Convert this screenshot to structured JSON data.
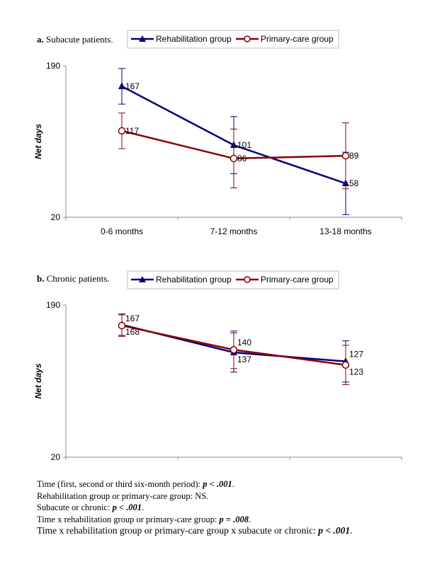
{
  "chart_data": [
    {
      "type": "line",
      "panel_letter": "a.",
      "title": "Subacute patients.",
      "ylabel": "Net days",
      "xlabel": "",
      "ylim": [
        20,
        190
      ],
      "yticks": [
        "190",
        "20"
      ],
      "categories": [
        "0-6 months",
        "7-12 months",
        "13-18 months"
      ],
      "legend": "top-center",
      "series": [
        {
          "name": "Rehabilitation group",
          "color": "#000080",
          "marker": "triangle",
          "values": [
            167,
            101,
            58
          ],
          "labels": [
            "167",
            "101",
            "58"
          ],
          "errors": [
            20,
            32,
            35
          ]
        },
        {
          "name": "Primary-care group",
          "color": "#8B0000",
          "marker": "open-circle",
          "values": [
            117,
            86,
            89
          ],
          "labels": [
            "117",
            "86",
            "89"
          ],
          "errors": [
            20,
            33,
            37
          ]
        }
      ]
    },
    {
      "type": "line",
      "panel_letter": "b.",
      "title": "Chronic patients.",
      "ylabel": "Net days",
      "xlabel": "",
      "ylim": [
        20,
        190
      ],
      "yticks": [
        "190",
        "20"
      ],
      "categories": [
        "0-6 months",
        "7-12 months",
        "13-18 months"
      ],
      "legend": "top-center",
      "series": [
        {
          "name": "Rehabilitation group",
          "color": "#000080",
          "marker": "triangle",
          "values": [
            168,
            137,
            127
          ],
          "labels": [
            "168",
            "137",
            "127"
          ],
          "errors": [
            12,
            22,
            23
          ]
        },
        {
          "name": "Primary-care group",
          "color": "#8B0000",
          "marker": "open-circle",
          "values": [
            167,
            140,
            123
          ],
          "labels": [
            "167",
            "140",
            "123"
          ],
          "errors": [
            12,
            21,
            22
          ]
        }
      ]
    }
  ],
  "notes": [
    {
      "text": "Time (first, second or third six-month period): ",
      "p": "p < .001",
      "end": "."
    },
    {
      "text": "Rehabilitation group or primary-care group: NS.",
      "p": "",
      "end": ""
    },
    {
      "text": "Subacute or chronic: ",
      "p": "p < .001",
      "end": "."
    },
    {
      "text": "Time x rehabilitation group or primary-care group: ",
      "p": "p = .008",
      "end": "."
    },
    {
      "text": "Time x rehabilitation group or primary-care group x subacute or chronic: ",
      "p": "p < .001",
      "end": "."
    }
  ]
}
